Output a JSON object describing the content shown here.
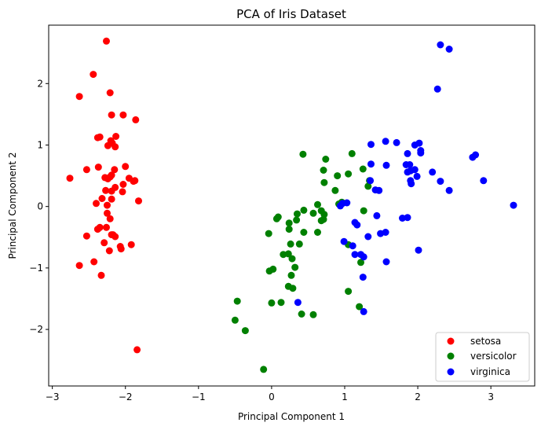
{
  "chart_data": {
    "type": "scatter",
    "title": "PCA of Iris Dataset",
    "xlabel": "Principal Component 1",
    "ylabel": "Principal Component 2",
    "xlim": [
      -3.05,
      3.6
    ],
    "ylim": [
      -2.92,
      2.95
    ],
    "xticks": [
      -3,
      -2,
      -1,
      0,
      1,
      2,
      3
    ],
    "yticks": [
      -2,
      -1,
      0,
      1,
      2
    ],
    "tick_format": {
      "minus": "−"
    },
    "grid": false,
    "legend_position": "lower right",
    "series": [
      {
        "name": "setosa",
        "color": "#ff0000",
        "points": [
          [
            -2.26,
            2.69
          ],
          [
            -2.44,
            2.15
          ],
          [
            -2.63,
            1.79
          ],
          [
            -2.21,
            1.85
          ],
          [
            -2.19,
            1.49
          ],
          [
            -2.03,
            1.49
          ],
          [
            -1.86,
            1.41
          ],
          [
            -2.35,
            1.13
          ],
          [
            -2.38,
            1.12
          ],
          [
            -2.13,
            1.14
          ],
          [
            -2.18,
            1.03
          ],
          [
            -2.2,
            1.07
          ],
          [
            -2.24,
            0.99
          ],
          [
            -2.14,
            0.97
          ],
          [
            -2.37,
            0.64
          ],
          [
            -2.53,
            0.6
          ],
          [
            -2.0,
            0.65
          ],
          [
            -2.15,
            0.6
          ],
          [
            -2.19,
            0.51
          ],
          [
            -2.21,
            0.48
          ],
          [
            -2.28,
            0.47
          ],
          [
            -2.24,
            0.45
          ],
          [
            -1.95,
            0.46
          ],
          [
            -1.87,
            0.42
          ],
          [
            -1.89,
            0.41
          ],
          [
            -2.76,
            0.46
          ],
          [
            -2.03,
            0.36
          ],
          [
            -2.14,
            0.31
          ],
          [
            -2.19,
            0.25
          ],
          [
            -2.04,
            0.24
          ],
          [
            -2.27,
            0.26
          ],
          [
            -2.32,
            0.13
          ],
          [
            -2.19,
            0.12
          ],
          [
            -2.4,
            0.05
          ],
          [
            -2.25,
            0.02
          ],
          [
            -1.82,
            0.09
          ],
          [
            -2.25,
            -0.11
          ],
          [
            -2.21,
            -0.2
          ],
          [
            -2.35,
            -0.34
          ],
          [
            -2.38,
            -0.37
          ],
          [
            -2.26,
            -0.34
          ],
          [
            -2.53,
            -0.48
          ],
          [
            -2.19,
            -0.46
          ],
          [
            -2.17,
            -0.46
          ],
          [
            -2.14,
            -0.49
          ],
          [
            -2.29,
            -0.59
          ],
          [
            -2.07,
            -0.65
          ],
          [
            -1.92,
            -0.62
          ],
          [
            -2.22,
            -0.72
          ],
          [
            -2.06,
            -0.69
          ],
          [
            -2.43,
            -0.9
          ],
          [
            -2.63,
            -0.96
          ],
          [
            -2.33,
            -1.12
          ],
          [
            -1.84,
            -2.33
          ]
        ]
      },
      {
        "name": "versicolor",
        "color": "#008000",
        "points": [
          [
            0.43,
            0.85
          ],
          [
            1.1,
            0.86
          ],
          [
            0.74,
            0.77
          ],
          [
            0.71,
            0.59
          ],
          [
            0.9,
            0.5
          ],
          [
            1.05,
            0.53
          ],
          [
            1.25,
            0.61
          ],
          [
            1.34,
            0.42
          ],
          [
            0.72,
            0.39
          ],
          [
            0.87,
            0.26
          ],
          [
            1.32,
            0.33
          ],
          [
            0.92,
            0.04
          ],
          [
            0.96,
            0.07
          ],
          [
            0.63,
            0.03
          ],
          [
            0.68,
            -0.07
          ],
          [
            0.57,
            -0.11
          ],
          [
            0.44,
            -0.06
          ],
          [
            0.35,
            -0.12
          ],
          [
            0.72,
            -0.13
          ],
          [
            1.26,
            -0.07
          ],
          [
            0.71,
            -0.21
          ],
          [
            0.68,
            -0.23
          ],
          [
            0.09,
            -0.17
          ],
          [
            0.07,
            -0.2
          ],
          [
            0.24,
            -0.27
          ],
          [
            0.34,
            -0.22
          ],
          [
            0.24,
            -0.37
          ],
          [
            0.44,
            -0.42
          ],
          [
            0.63,
            -0.42
          ],
          [
            -0.04,
            -0.44
          ],
          [
            0.16,
            -0.78
          ],
          [
            0.23,
            -0.77
          ],
          [
            0.28,
            -0.85
          ],
          [
            0.38,
            -0.61
          ],
          [
            0.26,
            -0.61
          ],
          [
            1.05,
            -0.62
          ],
          [
            0.32,
            -0.99
          ],
          [
            -0.03,
            -1.05
          ],
          [
            0.02,
            -1.02
          ],
          [
            0.27,
            -1.12
          ],
          [
            0.23,
            -1.3
          ],
          [
            0.29,
            -1.33
          ],
          [
            1.22,
            -0.91
          ],
          [
            1.05,
            -1.38
          ],
          [
            0.0,
            -1.57
          ],
          [
            0.13,
            -1.56
          ],
          [
            -0.47,
            -1.54
          ],
          [
            0.41,
            -1.75
          ],
          [
            0.57,
            -1.76
          ],
          [
            1.2,
            -1.63
          ],
          [
            -0.5,
            -1.85
          ],
          [
            -0.36,
            -2.02
          ],
          [
            -0.11,
            -2.65
          ]
        ]
      },
      {
        "name": "virginica",
        "color": "#0000ff",
        "points": [
          [
            2.31,
            2.63
          ],
          [
            2.43,
            2.56
          ],
          [
            2.27,
            1.91
          ],
          [
            1.56,
            1.06
          ],
          [
            1.71,
            1.04
          ],
          [
            2.02,
            1.03
          ],
          [
            1.96,
            1.0
          ],
          [
            1.36,
            1.01
          ],
          [
            2.04,
            0.91
          ],
          [
            2.04,
            0.87
          ],
          [
            1.86,
            0.86
          ],
          [
            2.79,
            0.84
          ],
          [
            2.75,
            0.8
          ],
          [
            1.89,
            0.68
          ],
          [
            1.84,
            0.68
          ],
          [
            1.57,
            0.67
          ],
          [
            1.36,
            0.69
          ],
          [
            1.9,
            0.58
          ],
          [
            1.96,
            0.6
          ],
          [
            2.2,
            0.56
          ],
          [
            1.99,
            0.49
          ],
          [
            1.86,
            0.56
          ],
          [
            1.35,
            0.42
          ],
          [
            1.9,
            0.42
          ],
          [
            1.91,
            0.37
          ],
          [
            2.31,
            0.41
          ],
          [
            2.9,
            0.42
          ],
          [
            1.42,
            0.27
          ],
          [
            1.47,
            0.26
          ],
          [
            2.43,
            0.26
          ],
          [
            0.97,
            0.05
          ],
          [
            1.03,
            0.06
          ],
          [
            0.94,
            0.01
          ],
          [
            3.31,
            0.02
          ],
          [
            1.44,
            -0.15
          ],
          [
            1.14,
            -0.26
          ],
          [
            1.17,
            -0.3
          ],
          [
            1.79,
            -0.19
          ],
          [
            1.86,
            -0.18
          ],
          [
            1.56,
            -0.42
          ],
          [
            1.49,
            -0.44
          ],
          [
            1.32,
            -0.49
          ],
          [
            0.99,
            -0.57
          ],
          [
            1.11,
            -0.64
          ],
          [
            1.14,
            -0.78
          ],
          [
            1.22,
            -0.78
          ],
          [
            1.26,
            -0.82
          ],
          [
            2.01,
            -0.71
          ],
          [
            1.57,
            -0.9
          ],
          [
            1.25,
            -1.15
          ],
          [
            0.36,
            -1.56
          ],
          [
            1.26,
            -1.71
          ]
        ]
      }
    ]
  }
}
